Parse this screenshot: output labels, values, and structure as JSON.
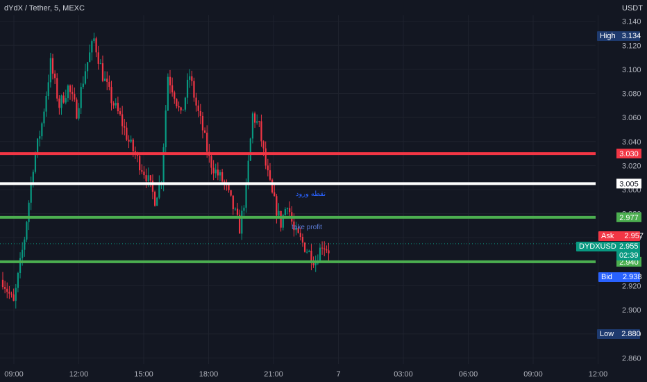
{
  "header": {
    "symbol_title": "dYdX / Tether, 5, MEXC",
    "currency": "USDT"
  },
  "annotations": {
    "entry": "نقطه ورود",
    "take_profit": "take profit"
  },
  "tags": {
    "high": {
      "label": "High",
      "value": "3.134",
      "color": "#1e3a6e"
    },
    "low": {
      "label": "Low",
      "value": "2.880",
      "color": "#1e3a6e"
    },
    "ask": {
      "label": "Ask",
      "value": "2.957",
      "color": "#f23645"
    },
    "bid": {
      "label": "Bid",
      "value": "2.938",
      "color": "#2962ff"
    },
    "last": {
      "label": "DYDXUSDT",
      "value": "2.955",
      "countdown": "02:39",
      "color": "#089981"
    }
  },
  "colors": {
    "up": "#089981",
    "down": "#f23645",
    "background": "#131722",
    "grid": "#1e222d"
  },
  "chart_data": {
    "type": "candlestick",
    "title": "dYdX / Tether, 5, MEXC",
    "ylabel": "USDT",
    "ylim": [
      2.855,
      3.145
    ],
    "y_ticks": [
      2.86,
      2.88,
      2.9,
      2.92,
      2.94,
      2.96,
      2.98,
      3.0,
      3.02,
      3.04,
      3.06,
      3.08,
      3.1,
      3.12,
      3.14
    ],
    "x_ticks": [
      "09:00",
      "12:00",
      "15:00",
      "18:00",
      "21:00",
      "7",
      "03:00",
      "06:00",
      "09:00",
      "12:00"
    ],
    "grid": true,
    "horizontal_lines": [
      {
        "price": 3.03,
        "color": "#f23645",
        "label": "3.030"
      },
      {
        "price": 3.005,
        "color": "#ffffff",
        "label": "3.005"
      },
      {
        "price": 2.977,
        "color": "#4caf50",
        "label": "2.977"
      },
      {
        "price": 2.94,
        "color": "#4caf50",
        "label": "2.940"
      }
    ],
    "close_path": [
      [
        0,
        2.925
      ],
      [
        5,
        2.905
      ],
      [
        10,
        2.96
      ],
      [
        14,
        3.02
      ],
      [
        18,
        3.055
      ],
      [
        22,
        3.105
      ],
      [
        26,
        3.07
      ],
      [
        30,
        3.085
      ],
      [
        34,
        3.065
      ],
      [
        38,
        3.1
      ],
      [
        42,
        3.125
      ],
      [
        46,
        3.095
      ],
      [
        50,
        3.075
      ],
      [
        54,
        3.06
      ],
      [
        58,
        3.04
      ],
      [
        62,
        3.025
      ],
      [
        66,
        3.012
      ],
      [
        70,
        2.992
      ],
      [
        73,
        3.01
      ],
      [
        76,
        3.095
      ],
      [
        79,
        3.08
      ],
      [
        82,
        3.06
      ],
      [
        86,
        3.095
      ],
      [
        89,
        3.07
      ],
      [
        92,
        3.05
      ],
      [
        95,
        3.025
      ],
      [
        98,
        3.015
      ],
      [
        102,
        3.005
      ],
      [
        106,
        2.985
      ],
      [
        109,
        2.968
      ],
      [
        112,
        3.0
      ],
      [
        115,
        3.062
      ],
      [
        118,
        3.052
      ],
      [
        121,
        3.02
      ],
      [
        124,
        2.995
      ],
      [
        128,
        2.972
      ],
      [
        131,
        2.99
      ],
      [
        134,
        2.965
      ],
      [
        137,
        2.958
      ],
      [
        140,
        2.95
      ],
      [
        144,
        2.94
      ],
      [
        147,
        2.955
      ],
      [
        150,
        2.95
      ]
    ]
  }
}
